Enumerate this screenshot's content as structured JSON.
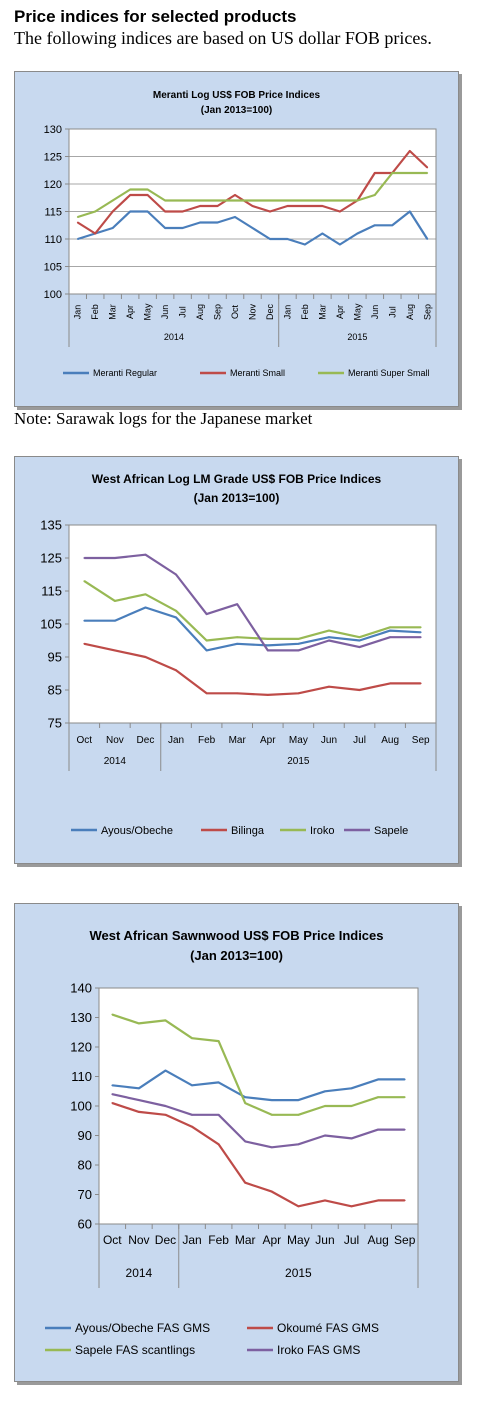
{
  "header": {
    "title": "Price indices for selected products",
    "subtitle": "The following indices are based on US dollar FOB prices."
  },
  "note": "Note: Sarawak logs for the Japanese market",
  "chart_data": [
    {
      "type": "line",
      "title": "Meranti Log US$ FOB Price Indices",
      "subtitle": "(Jan 2013=100)",
      "categories": [
        "Jan",
        "Feb",
        "Mar",
        "Apr",
        "May",
        "Jun",
        "Jul",
        "Aug",
        "Sep",
        "Oct",
        "Nov",
        "Dec",
        "Jan",
        "Feb",
        "Mar",
        "Apr",
        "May",
        "Jun",
        "Jul",
        "Aug",
        "Sep"
      ],
      "year_groups": [
        {
          "label": "2014",
          "count": 12
        },
        {
          "label": "2015",
          "count": 9
        }
      ],
      "ylim": [
        100,
        130
      ],
      "yticks": [
        100,
        105,
        110,
        115,
        120,
        125,
        130
      ],
      "grid": true,
      "legend": "bottom",
      "series": [
        {
          "name": "Meranti Regular",
          "color": "#4a7ebb",
          "values": [
            110,
            111,
            112,
            115,
            115,
            112,
            112,
            113,
            113,
            114,
            112,
            110,
            110,
            109,
            111,
            109,
            111,
            112.5,
            112.5,
            115,
            110
          ]
        },
        {
          "name": "Meranti Small",
          "color": "#be4b48",
          "values": [
            113,
            111,
            115,
            118,
            118,
            115,
            115,
            116,
            116,
            118,
            116,
            115,
            116,
            116,
            116,
            115,
            117,
            122,
            122,
            126,
            123
          ]
        },
        {
          "name": "Meranti Super Small",
          "color": "#98b954",
          "values": [
            114,
            115,
            117,
            119,
            119,
            117,
            117,
            117,
            117,
            117,
            117,
            117,
            117,
            117,
            117,
            117,
            117,
            118,
            122,
            122,
            122
          ]
        }
      ]
    },
    {
      "type": "line",
      "title": "West African Log LM Grade US$ FOB Price Indices",
      "subtitle": "(Jan 2013=100)",
      "categories": [
        "Oct",
        "Nov",
        "Dec",
        "Jan",
        "Feb",
        "Mar",
        "Apr",
        "May",
        "Jun",
        "Jul",
        "Aug",
        "Sep"
      ],
      "year_groups": [
        {
          "label": "2014",
          "count": 3
        },
        {
          "label": "2015",
          "count": 9
        }
      ],
      "ylim": [
        75,
        135
      ],
      "yticks": [
        75,
        85,
        95,
        105,
        115,
        125,
        135
      ],
      "grid": false,
      "legend": "bottom",
      "series": [
        {
          "name": "Ayous/Obeche",
          "color": "#4a7ebb",
          "values": [
            106,
            106,
            110,
            107,
            97,
            99,
            98.5,
            99,
            101,
            100,
            103,
            102.5
          ]
        },
        {
          "name": "Bilinga",
          "color": "#be4b48",
          "values": [
            99,
            97,
            95,
            91,
            84,
            84,
            83.5,
            84,
            86,
            85,
            87,
            87
          ]
        },
        {
          "name": "Iroko",
          "color": "#98b954",
          "values": [
            118,
            112,
            114,
            109,
            100,
            101,
            100.5,
            100.5,
            103,
            101,
            104,
            104
          ]
        },
        {
          "name": "Sapele",
          "color": "#7d60a0",
          "values": [
            125,
            125,
            126,
            120,
            108,
            111,
            97,
            97,
            100,
            98,
            101,
            101
          ]
        }
      ]
    },
    {
      "type": "line",
      "title": "West African Sawnwood US$ FOB Price Indices",
      "subtitle": "(Jan 2013=100)",
      "categories": [
        "Oct",
        "Nov",
        "Dec",
        "Jan",
        "Feb",
        "Mar",
        "Apr",
        "May",
        "Jun",
        "Jul",
        "Aug",
        "Sep"
      ],
      "year_groups": [
        {
          "label": "2014",
          "count": 3
        },
        {
          "label": "2015",
          "count": 9
        }
      ],
      "ylim": [
        60,
        140
      ],
      "yticks": [
        60,
        70,
        80,
        90,
        100,
        110,
        120,
        130,
        140
      ],
      "grid": false,
      "legend": "bottom",
      "series": [
        {
          "name": "Ayous/Obeche  FAS GMS",
          "color": "#4a7ebb",
          "values": [
            107,
            106,
            112,
            107,
            108,
            103,
            102,
            102,
            105,
            106,
            109,
            109
          ]
        },
        {
          "name": "Okoumé  FAS GMS",
          "color": "#be4b48",
          "values": [
            101,
            98,
            97,
            93,
            87,
            74,
            71,
            66,
            68,
            66,
            68,
            68
          ]
        },
        {
          "name": "Sapele FAS scantlings",
          "color": "#98b954",
          "values": [
            131,
            128,
            129,
            123,
            122,
            101,
            97,
            97,
            100,
            100,
            103,
            103
          ]
        },
        {
          "name": "Iroko FAS GMS",
          "color": "#7d60a0",
          "values": [
            104,
            102,
            100,
            97,
            97,
            88,
            86,
            87,
            90,
            89,
            92,
            92
          ]
        }
      ]
    }
  ]
}
